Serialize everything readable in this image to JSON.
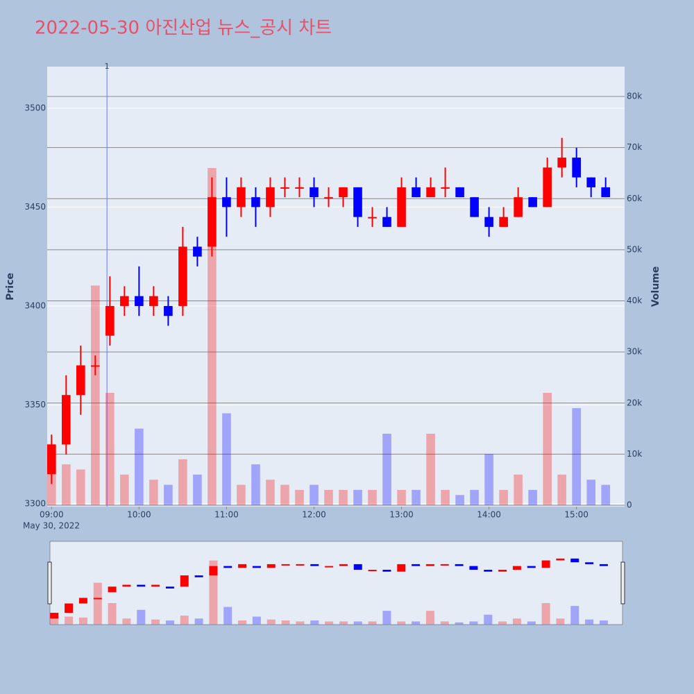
{
  "chart_data": {
    "type": "candlestick",
    "title": "2022-05-30 아진산업 뉴스_공시 차트",
    "y_label": "Price",
    "y2_label": "Volume",
    "x_date_label": "May 30, 2022",
    "annotation": {
      "x": "09:38",
      "text": "1"
    },
    "x": [
      "09:00",
      "09:10",
      "09:20",
      "09:30",
      "09:40",
      "09:50",
      "10:00",
      "10:10",
      "10:20",
      "10:30",
      "10:40",
      "10:50",
      "11:00",
      "11:10",
      "11:20",
      "11:30",
      "11:40",
      "11:50",
      "12:00",
      "12:10",
      "12:20",
      "12:30",
      "12:40",
      "12:50",
      "13:00",
      "13:10",
      "13:20",
      "13:30",
      "13:40",
      "13:50",
      "14:00",
      "14:10",
      "14:20",
      "14:30",
      "14:40",
      "14:50",
      "15:00",
      "15:10",
      "15:20"
    ],
    "open": [
      3315,
      3330,
      3355,
      3370,
      3385,
      3400,
      3405,
      3400,
      3400,
      3400,
      3430,
      3430,
      3455,
      3450,
      3455,
      3450,
      3460,
      3460,
      3460,
      3455,
      3455,
      3460,
      3445,
      3445,
      3440,
      3460,
      3455,
      3460,
      3460,
      3455,
      3445,
      3440,
      3445,
      3455,
      3450,
      3470,
      3475,
      3465,
      3460
    ],
    "high": [
      3335,
      3365,
      3380,
      3375,
      3415,
      3410,
      3420,
      3410,
      3405,
      3440,
      3435,
      3465,
      3465,
      3465,
      3460,
      3465,
      3465,
      3465,
      3465,
      3460,
      3460,
      3460,
      3450,
      3450,
      3465,
      3465,
      3465,
      3470,
      3460,
      3455,
      3450,
      3450,
      3460,
      3455,
      3475,
      3485,
      3480,
      3465,
      3465
    ],
    "low": [
      3310,
      3325,
      3345,
      3365,
      3380,
      3395,
      3395,
      3395,
      3390,
      3395,
      3420,
      3425,
      3435,
      3445,
      3440,
      3445,
      3455,
      3455,
      3450,
      3450,
      3450,
      3440,
      3440,
      3440,
      3440,
      3455,
      3455,
      3455,
      3455,
      3445,
      3435,
      3440,
      3445,
      3450,
      3450,
      3465,
      3460,
      3455,
      3455
    ],
    "close": [
      3330,
      3355,
      3370,
      3370,
      3400,
      3405,
      3400,
      3405,
      3395,
      3430,
      3425,
      3455,
      3450,
      3460,
      3450,
      3460,
      3460,
      3460,
      3455,
      3455,
      3460,
      3445,
      3445,
      3440,
      3460,
      3455,
      3460,
      3460,
      3455,
      3445,
      3440,
      3445,
      3455,
      3450,
      3470,
      3475,
      3465,
      3460,
      3455
    ],
    "volume": [
      12000,
      8000,
      7000,
      43000,
      22000,
      6000,
      15000,
      5000,
      4000,
      9000,
      6000,
      66000,
      18000,
      4000,
      8000,
      5000,
      4000,
      3000,
      4000,
      3000,
      3000,
      3000,
      3000,
      14000,
      3000,
      3000,
      14000,
      3000,
      2000,
      3000,
      10000,
      3000,
      6000,
      3000,
      22000,
      6000,
      19000,
      5000,
      4000
    ],
    "up_color": "#ff0000",
    "down_color": "#0000ff",
    "title_color": "#e8506a",
    "xlim": [
      "08:57",
      "15:33"
    ],
    "xticks": [
      "09:00",
      "10:00",
      "11:00",
      "12:00",
      "13:00",
      "14:00",
      "15:00"
    ],
    "ylim": [
      3298.6,
      3521
    ],
    "yticks": [
      3300,
      3350,
      3400,
      3450,
      3500
    ],
    "y2lim": [
      -270,
      85840
    ],
    "y2ticks": [
      0,
      {
        "value": 10000,
        "label": "10k"
      },
      {
        "value": 20000,
        "label": "20k"
      },
      {
        "value": 30000,
        "label": "30k"
      },
      {
        "value": 40000,
        "label": "40k"
      },
      {
        "value": 50000,
        "label": "50k"
      },
      {
        "value": 60000,
        "label": "60k"
      },
      {
        "value": 70000,
        "label": "70k"
      },
      {
        "value": 80000,
        "label": "80k"
      }
    ],
    "rangeslider": true
  }
}
